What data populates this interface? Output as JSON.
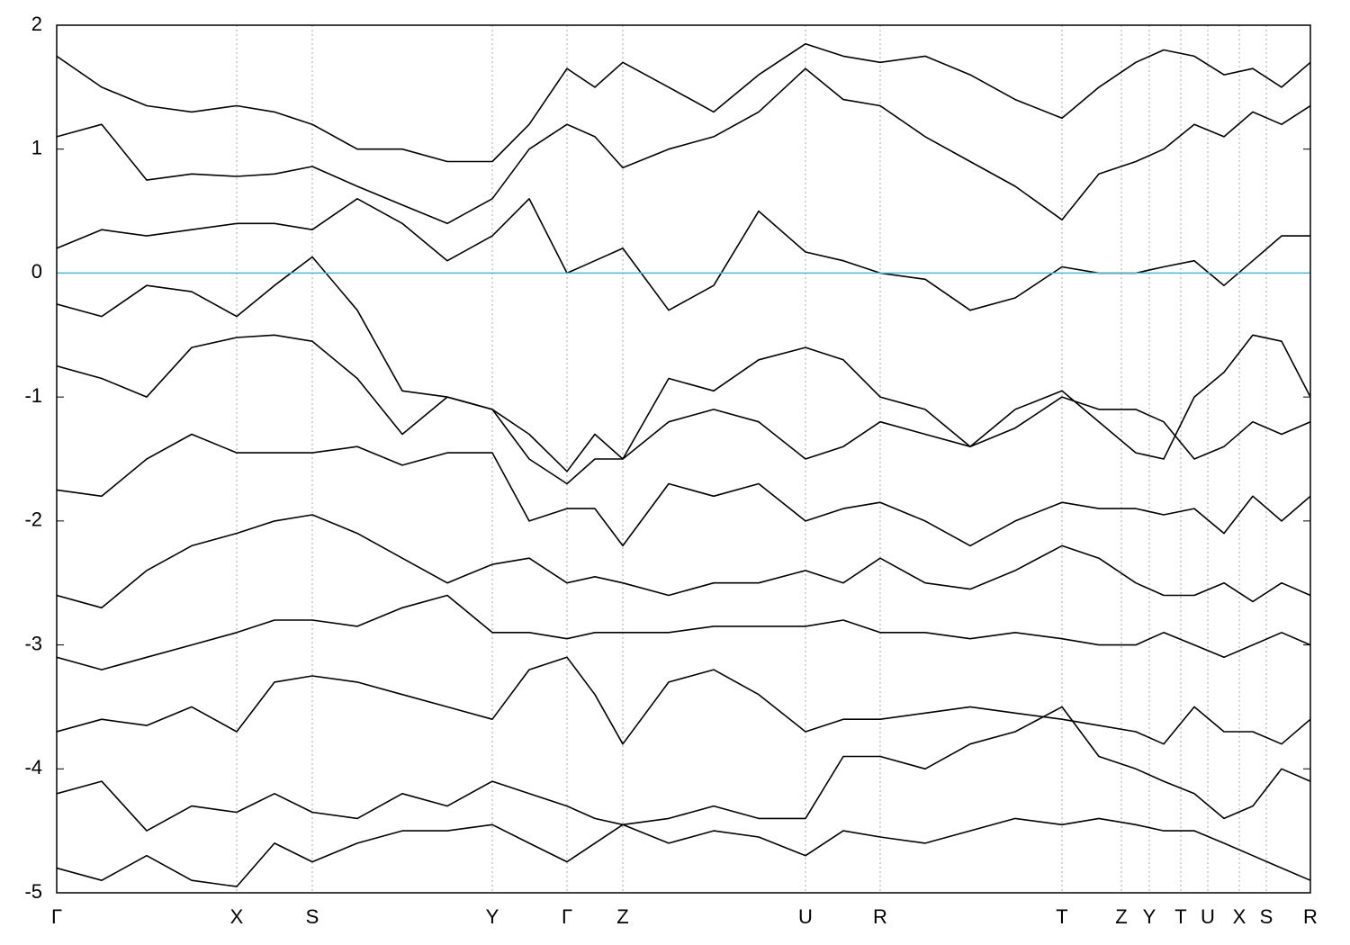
{
  "chart_data": {
    "type": "line",
    "line_color": "#000000",
    "grid_color": "#aaaaaa",
    "vertical_grid": true,
    "fermi_level": 0,
    "fermi_color": "#5fb0c8",
    "xlim": [
      0,
      1393
    ],
    "ylim": [
      -5,
      2
    ],
    "yticks": [
      -5,
      -4,
      -3,
      -2,
      -1,
      0,
      1,
      2
    ],
    "xticks": [
      {
        "value": 0,
        "label": "Γ"
      },
      {
        "value": 200,
        "label": "X"
      },
      {
        "value": 284,
        "label": "S"
      },
      {
        "value": 484,
        "label": "Y"
      },
      {
        "value": 567,
        "label": "Γ"
      },
      {
        "value": 629,
        "label": "Z"
      },
      {
        "value": 832,
        "label": "U"
      },
      {
        "value": 915,
        "label": "R"
      },
      {
        "value": 1117,
        "label": "T"
      },
      {
        "value": 1183,
        "label": "Z"
      },
      {
        "value": 1214,
        "label": "Y"
      },
      {
        "value": 1249,
        "label": "T"
      },
      {
        "value": 1279,
        "label": "U"
      },
      {
        "value": 1314,
        "label": "X"
      },
      {
        "value": 1344,
        "label": "S"
      },
      {
        "value": 1393,
        "label": "R"
      }
    ],
    "x": [
      0,
      50,
      100,
      150,
      200,
      242,
      284,
      334,
      384,
      434,
      484,
      525,
      567,
      598,
      629,
      680,
      730,
      780,
      832,
      874,
      915,
      965,
      1015,
      1065,
      1117,
      1158,
      1199,
      1230,
      1264,
      1297,
      1329,
      1361,
      1393
    ],
    "series": [
      {
        "values": [
          1.75,
          1.5,
          1.35,
          1.3,
          1.35,
          1.3,
          1.2,
          1.0,
          1.0,
          0.9,
          0.9,
          1.2,
          1.65,
          1.5,
          1.7,
          1.5,
          1.3,
          1.6,
          1.85,
          1.75,
          1.7,
          1.75,
          1.6,
          1.4,
          1.25,
          1.5,
          1.7,
          1.8,
          1.75,
          1.6,
          1.65,
          1.5,
          1.7
        ]
      },
      {
        "values": [
          1.1,
          1.2,
          0.75,
          0.8,
          0.78,
          0.8,
          0.86,
          0.7,
          0.55,
          0.4,
          0.6,
          1.0,
          1.2,
          1.1,
          0.85,
          1.0,
          1.1,
          1.3,
          1.65,
          1.4,
          1.35,
          1.1,
          0.9,
          0.7,
          0.43,
          0.8,
          0.9,
          1.0,
          1.2,
          1.1,
          1.3,
          1.2,
          1.35
        ]
      },
      {
        "values": [
          0.2,
          0.35,
          0.3,
          0.35,
          0.4,
          0.4,
          0.35,
          0.6,
          0.4,
          0.1,
          0.3,
          0.6,
          0,
          0.1,
          0.2,
          -0.3,
          -0.1,
          0.5,
          0.17,
          0.1,
          0.0,
          -0.05,
          -0.3,
          -0.2,
          0.05,
          0.0,
          0.0,
          0.05,
          0.1,
          -0.1,
          0.1,
          0.3,
          0.3
        ]
      },
      {
        "values": [
          -0.25,
          -0.35,
          -0.1,
          -0.15,
          -0.35,
          -0.1,
          0.13,
          -0.3,
          -0.95,
          -1.0,
          -1.1,
          -1.5,
          -1.7,
          -1.5,
          -1.5,
          -0.85,
          -0.95,
          -0.7,
          -0.6,
          -0.7,
          -1.0,
          -1.1,
          -1.4,
          -1.1,
          -0.95,
          -1.2,
          -1.45,
          -1.5,
          -1.0,
          -0.8,
          -0.5,
          -0.55,
          -1.0
        ]
      },
      {
        "values": [
          -0.75,
          -0.85,
          -1.0,
          -0.6,
          -0.52,
          -0.5,
          -0.55,
          -0.85,
          -1.3,
          -1.0,
          -1.1,
          -1.3,
          -1.6,
          -1.3,
          -1.5,
          -1.2,
          -1.1,
          -1.2,
          -1.5,
          -1.4,
          -1.2,
          -1.3,
          -1.4,
          -1.25,
          -1.0,
          -1.1,
          -1.1,
          -1.2,
          -1.5,
          -1.4,
          -1.2,
          -1.3,
          -1.2
        ]
      },
      {
        "values": [
          -1.75,
          -1.8,
          -1.5,
          -1.3,
          -1.45,
          -1.45,
          -1.45,
          -1.4,
          -1.55,
          -1.45,
          -1.45,
          -2.0,
          -1.9,
          -1.9,
          -2.2,
          -1.7,
          -1.8,
          -1.7,
          -2.0,
          -1.9,
          -1.85,
          -2.0,
          -2.2,
          -2.0,
          -1.85,
          -1.9,
          -1.9,
          -1.95,
          -1.9,
          -2.1,
          -1.8,
          -2.0,
          -1.8
        ]
      },
      {
        "values": [
          -2.6,
          -2.7,
          -2.4,
          -2.2,
          -2.1,
          -2.0,
          -1.95,
          -2.1,
          -2.3,
          -2.5,
          -2.35,
          -2.3,
          -2.5,
          -2.45,
          -2.5,
          -2.6,
          -2.5,
          -2.5,
          -2.4,
          -2.5,
          -2.3,
          -2.5,
          -2.55,
          -2.4,
          -2.2,
          -2.3,
          -2.5,
          -2.6,
          -2.6,
          -2.5,
          -2.65,
          -2.5,
          -2.6
        ]
      },
      {
        "values": [
          -3.1,
          -3.2,
          -3.1,
          -3.0,
          -2.9,
          -2.8,
          -2.8,
          -2.85,
          -2.7,
          -2.6,
          -2.9,
          -2.9,
          -2.95,
          -2.9,
          -2.9,
          -2.9,
          -2.85,
          -2.85,
          -2.85,
          -2.8,
          -2.9,
          -2.9,
          -2.95,
          -2.9,
          -2.95,
          -3.0,
          -3.0,
          -2.9,
          -3.0,
          -3.1,
          -3.0,
          -2.9,
          -3.0
        ]
      },
      {
        "values": [
          -3.7,
          -3.6,
          -3.65,
          -3.5,
          -3.7,
          -3.3,
          -3.25,
          -3.3,
          -3.4,
          -3.5,
          -3.6,
          -3.2,
          -3.1,
          -3.4,
          -3.8,
          -3.3,
          -3.2,
          -3.4,
          -3.7,
          -3.6,
          -3.6,
          -3.55,
          -3.5,
          -3.55,
          -3.6,
          -3.65,
          -3.7,
          -3.8,
          -3.5,
          -3.7,
          -3.7,
          -3.8,
          -3.6
        ]
      },
      {
        "values": [
          -4.2,
          -4.1,
          -4.5,
          -4.3,
          -4.35,
          -4.2,
          -4.35,
          -4.4,
          -4.2,
          -4.3,
          -4.1,
          -4.2,
          -4.3,
          -4.4,
          -4.45,
          -4.4,
          -4.3,
          -4.4,
          -4.4,
          -3.9,
          -3.9,
          -4.0,
          -3.8,
          -3.7,
          -3.5,
          -3.9,
          -4.0,
          -4.1,
          -4.2,
          -4.4,
          -4.3,
          -4.0,
          -4.1
        ]
      },
      {
        "values": [
          -4.8,
          -4.9,
          -4.7,
          -4.9,
          -4.95,
          -4.6,
          -4.75,
          -4.6,
          -4.5,
          -4.5,
          -4.45,
          -4.6,
          -4.75,
          -4.6,
          -4.45,
          -4.6,
          -4.5,
          -4.55,
          -4.7,
          -4.5,
          -4.55,
          -4.6,
          -4.5,
          -4.4,
          -4.45,
          -4.4,
          -4.45,
          -4.5,
          -4.5,
          -4.6,
          -4.7,
          -4.8,
          -4.9
        ]
      }
    ]
  }
}
